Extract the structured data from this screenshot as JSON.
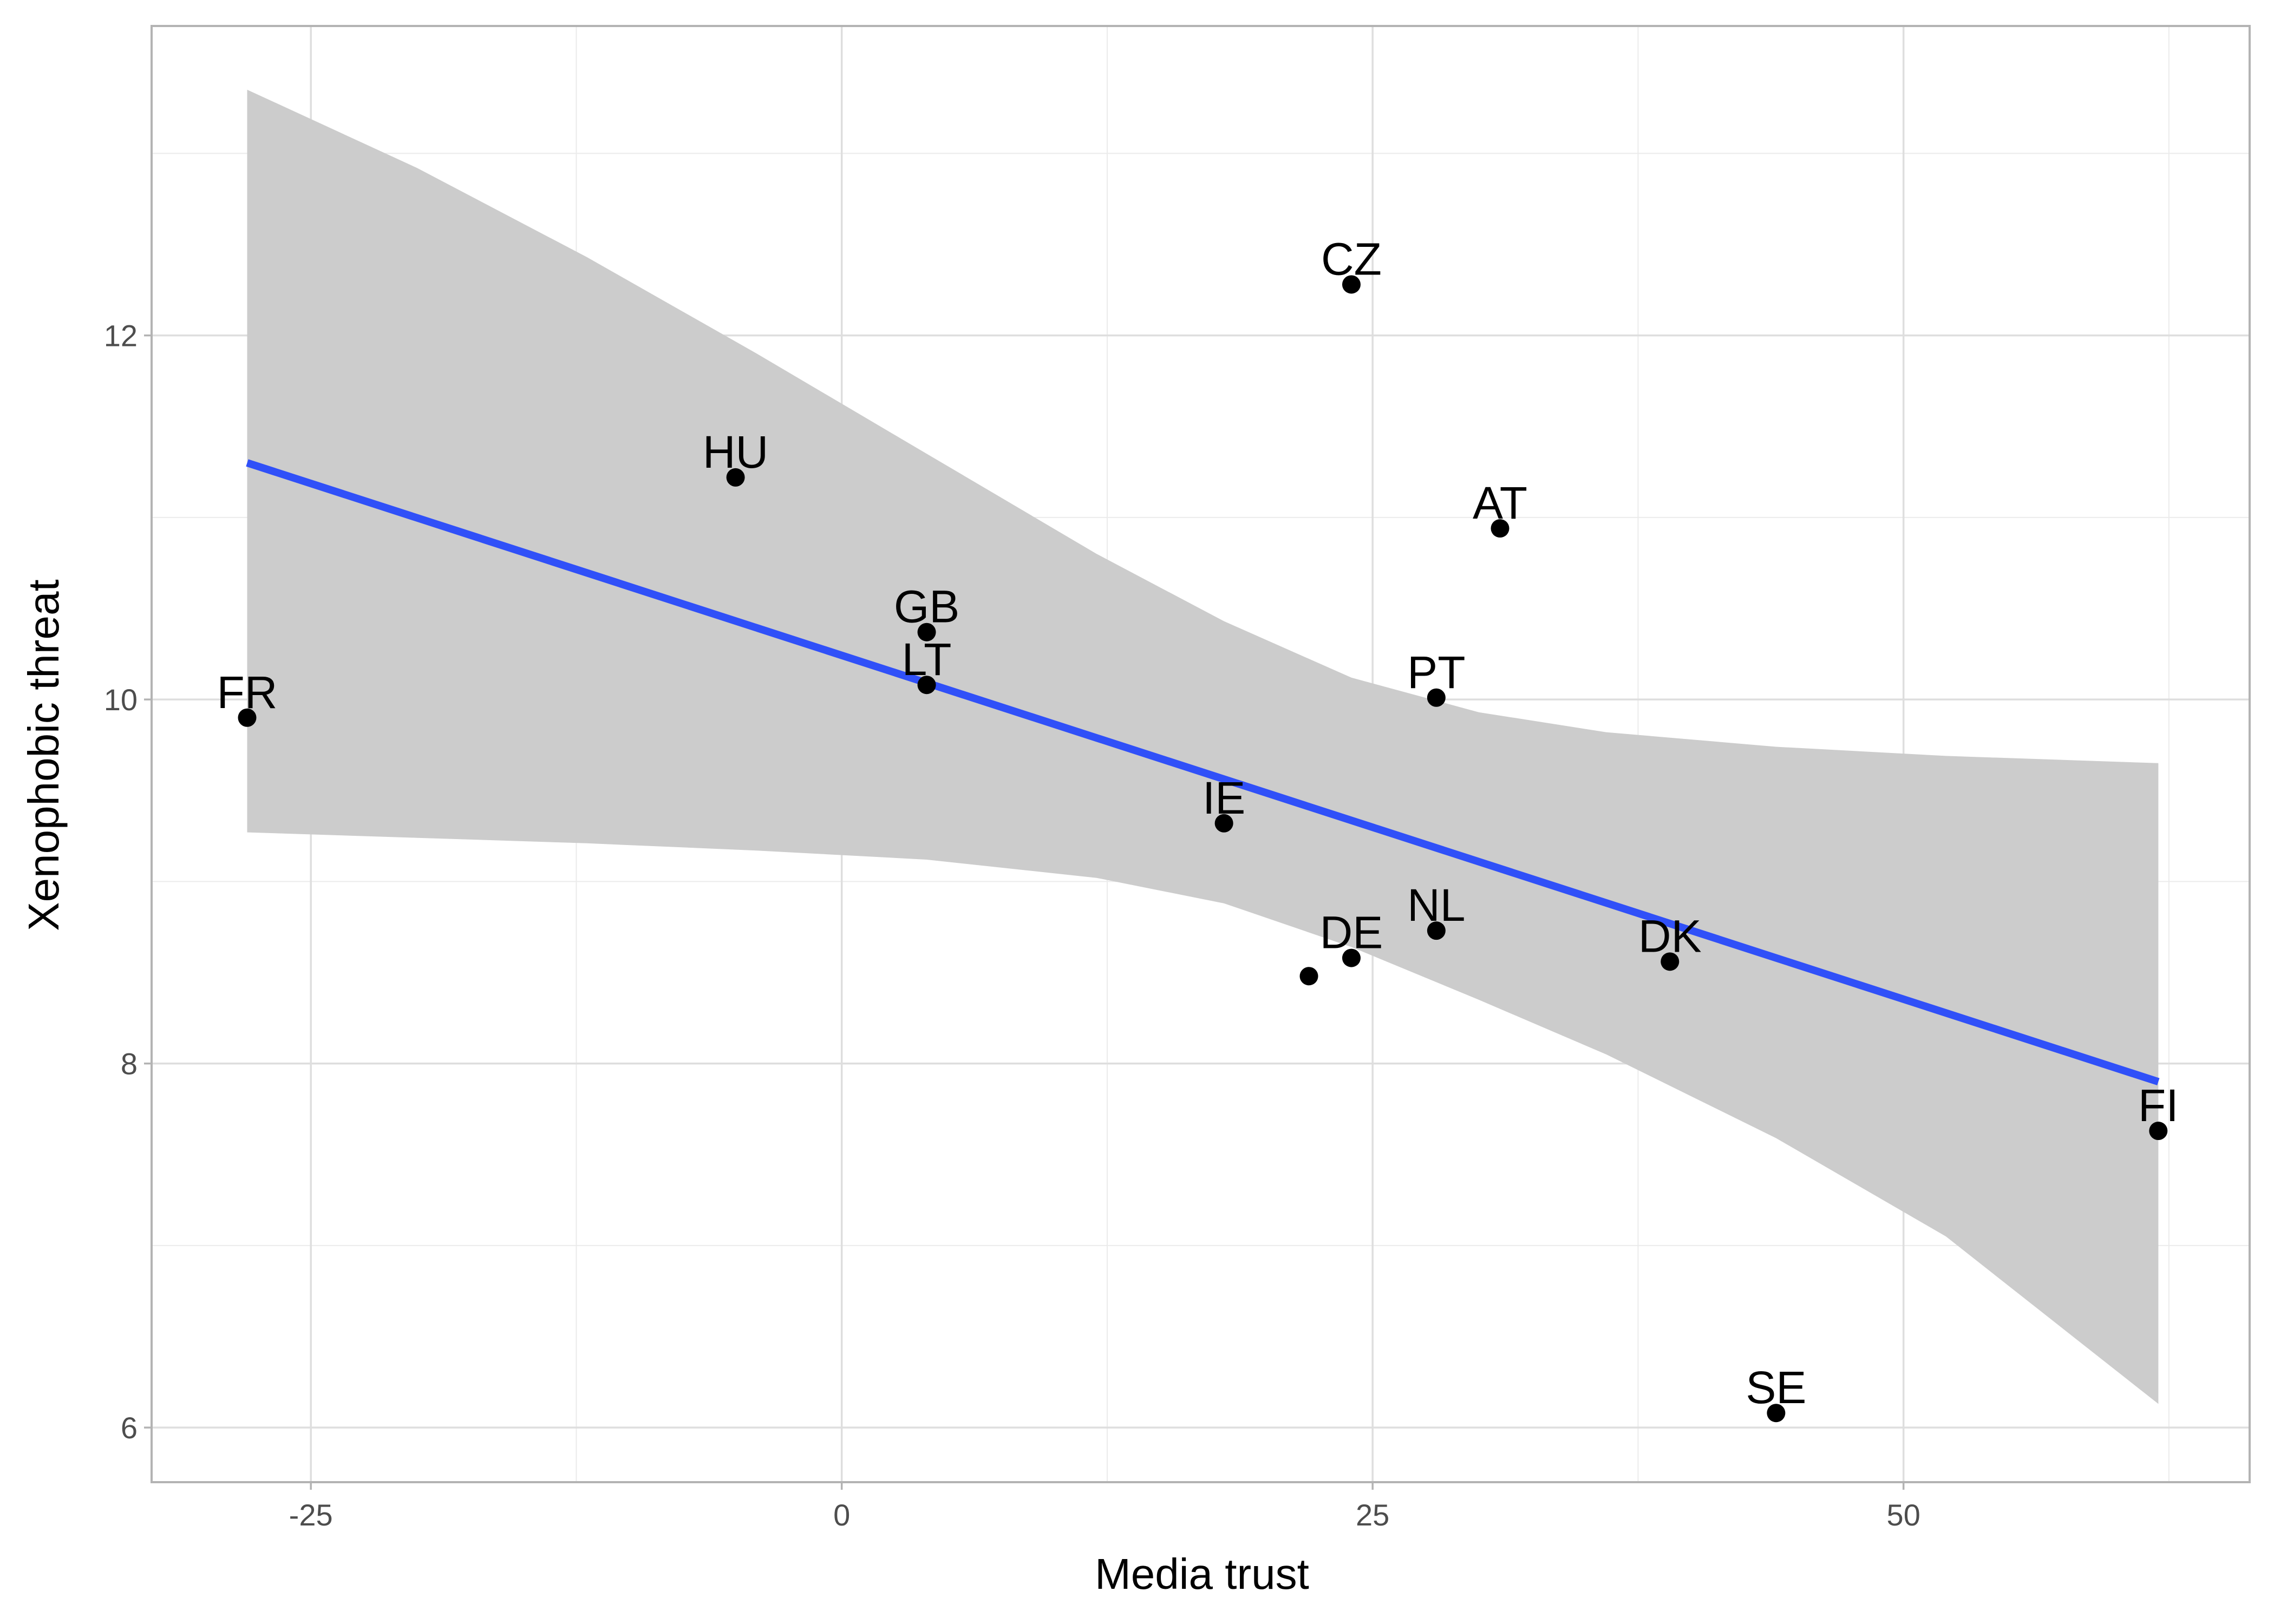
{
  "chart_data": {
    "type": "scatter",
    "title": "",
    "xlabel": "Media trust",
    "ylabel": "Xenophobic threat",
    "xlim": [
      -32.5,
      66.3
    ],
    "ylim": [
      5.7,
      13.7
    ],
    "x_ticks": [
      -25,
      0,
      25,
      50
    ],
    "x_tick_labels": [
      "-25",
      "0",
      "25",
      "50"
    ],
    "y_ticks": [
      6,
      8,
      10,
      12
    ],
    "y_tick_labels": [
      "6",
      "8",
      "10",
      "12"
    ],
    "grid": true,
    "points": [
      {
        "label": "CZ",
        "x": 24.0,
        "y": 12.28
      },
      {
        "label": "HU",
        "x": -5.0,
        "y": 11.22
      },
      {
        "label": "AT",
        "x": 31.0,
        "y": 10.94
      },
      {
        "label": "GB",
        "x": 4.0,
        "y": 10.37
      },
      {
        "label": "LT",
        "x": 4.0,
        "y": 10.08
      },
      {
        "label": "PT",
        "x": 28.0,
        "y": 10.01
      },
      {
        "label": "FR",
        "x": -28.0,
        "y": 9.9
      },
      {
        "label": "IE",
        "x": 18.0,
        "y": 9.32
      },
      {
        "label": "NL",
        "x": 28.0,
        "y": 8.73
      },
      {
        "label": "DE",
        "x": 24.0,
        "y": 8.58
      },
      {
        "label": "",
        "x": 22.0,
        "y": 8.48
      },
      {
        "label": "DK",
        "x": 39.0,
        "y": 8.56
      },
      {
        "label": "FI",
        "x": 62.0,
        "y": 7.63
      },
      {
        "label": "SE",
        "x": 44.0,
        "y": 6.08
      }
    ],
    "fit_line": {
      "x": [
        -28.0,
        62.0
      ],
      "y": [
        11.3,
        7.9
      ],
      "color": "#3050f8"
    },
    "confidence_band": {
      "x": [
        -28.0,
        -20.0,
        -12.0,
        -4.0,
        4.0,
        12.0,
        18.0,
        24.0,
        30.0,
        36.0,
        44.0,
        52.0,
        62.0
      ],
      "upper": [
        13.35,
        12.92,
        12.43,
        11.9,
        11.35,
        10.8,
        10.43,
        10.12,
        9.93,
        9.82,
        9.74,
        9.69,
        9.65
      ],
      "lower": [
        9.27,
        9.24,
        9.21,
        9.17,
        9.12,
        9.02,
        8.88,
        8.64,
        8.35,
        8.05,
        7.59,
        7.05,
        6.13
      ],
      "color": "#cccccc"
    },
    "point_color": "#000000",
    "panel_background": "#ffffff",
    "grid_color": "#dedede",
    "panel_border_color": "#b3b3b3"
  }
}
